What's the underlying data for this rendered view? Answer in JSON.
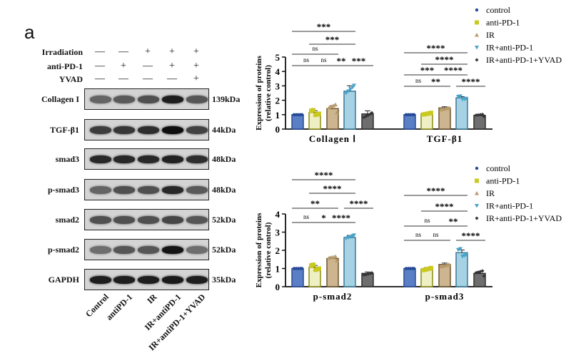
{
  "panel_letter": "a",
  "conditions": [
    {
      "label": "Irradiation",
      "signs": [
        "—",
        "—",
        "+",
        "+",
        "+"
      ]
    },
    {
      "label": "anti-PD-1",
      "signs": [
        "—",
        "+",
        "—",
        "+",
        "+"
      ]
    },
    {
      "label": "YVAD",
      "signs": [
        "—",
        "—",
        "—",
        "—",
        "+"
      ]
    }
  ],
  "blots": [
    {
      "label": "Collagen I",
      "kda": "139kDa",
      "intensity": [
        0.55,
        0.6,
        0.65,
        0.9,
        0.62
      ]
    },
    {
      "label": "TGF-β1",
      "kda": "44kDa",
      "intensity": [
        0.75,
        0.78,
        0.82,
        0.98,
        0.72
      ]
    },
    {
      "label": "smad3",
      "kda": "48kDa",
      "intensity": [
        0.85,
        0.85,
        0.85,
        0.88,
        0.82
      ]
    },
    {
      "label": "p-smad3",
      "kda": "48kDa",
      "intensity": [
        0.55,
        0.65,
        0.65,
        0.85,
        0.6
      ]
    },
    {
      "label": "smad2",
      "kda": "52kDa",
      "intensity": [
        0.65,
        0.65,
        0.65,
        0.7,
        0.62
      ]
    },
    {
      "label": "p-smad2",
      "kda": "52kDa",
      "intensity": [
        0.5,
        0.62,
        0.62,
        0.95,
        0.5
      ]
    },
    {
      "label": "GAPDH",
      "kda": "35kDa",
      "intensity": [
        0.9,
        0.9,
        0.9,
        0.92,
        0.9
      ]
    }
  ],
  "lanes": [
    "Control",
    "antiPD-1",
    "IR",
    "IR+antiPD-1",
    "IR+antiPD-1+YVAD"
  ],
  "colors": {
    "control": {
      "fill": "#5b7fc4",
      "stroke": "#274a96"
    },
    "anti-PD-1": {
      "fill": "#efefc4",
      "stroke": "#8a8a14",
      "marker": "#c9c920"
    },
    "IR": {
      "fill": "#cdb58f",
      "stroke": "#6b5530",
      "marker": "#b89a6a"
    },
    "IR+anti-PD-1": {
      "fill": "#a6d2e4",
      "stroke": "#3a7896",
      "marker": "#4aa3c8"
    },
    "IR+anti-PD-1+YVAD": {
      "fill": "#6e6e6e",
      "stroke": "#2e2e2e",
      "marker": "#333"
    }
  },
  "chart_data": [
    {
      "type": "bar",
      "ylabel": "Expression of proteins (relative control)",
      "ylim": [
        0,
        5
      ],
      "yticks": [
        "0",
        "1",
        "2",
        "3",
        "4",
        "5"
      ],
      "legend_position": "top-right",
      "series_names": [
        "control",
        "anti-PD-1",
        "IR",
        "IR+anti-PD-1",
        "IR+anti-PD-1+YVAD"
      ],
      "groups": [
        {
          "category": "Collagen Ⅰ",
          "values": [
            1.0,
            1.15,
            1.42,
            2.63,
            1.05
          ],
          "errors": [
            0,
            0.12,
            0.2,
            0.38,
            0.22
          ],
          "significance": [
            {
              "pair": [
                0,
                1
              ],
              "label": "ns"
            },
            {
              "pair": [
                1,
                2
              ],
              "label": "ns"
            },
            {
              "pair": [
                2,
                3
              ],
              "label": "**"
            },
            {
              "pair": [
                3,
                4
              ],
              "label": "***"
            },
            {
              "pair": [
                0,
                2
              ],
              "label": "ns"
            },
            {
              "pair": [
                1,
                3
              ],
              "label": "***"
            },
            {
              "pair": [
                0,
                3
              ],
              "label": "***"
            }
          ]
        },
        {
          "category": "TGF-β1",
          "values": [
            1.0,
            1.07,
            1.47,
            2.17,
            0.95
          ],
          "errors": [
            0,
            0.08,
            0.08,
            0.08,
            0.05
          ],
          "significance": [
            {
              "pair": [
                0,
                1
              ],
              "label": "ns"
            },
            {
              "pair": [
                1,
                2
              ],
              "label": "**"
            },
            {
              "pair": [
                3,
                4
              ],
              "label": "****"
            },
            {
              "pair": [
                0,
                2
              ],
              "label": "***"
            },
            {
              "pair": [
                2,
                3
              ],
              "label": "****"
            },
            {
              "pair": [
                1,
                3
              ],
              "label": "****"
            },
            {
              "pair": [
                0,
                3
              ],
              "label": "****"
            }
          ]
        }
      ]
    },
    {
      "type": "bar",
      "ylabel": "Expression of proteins (relative control)",
      "ylim": [
        0,
        4
      ],
      "yticks": [
        "0",
        "1",
        "2",
        "3",
        "4"
      ],
      "legend_position": "top-right",
      "series_names": [
        "control",
        "anti-PD-1",
        "IR",
        "IR+anti-PD-1",
        "IR+anti-PD-1+YVAD"
      ],
      "groups": [
        {
          "category": "p-smad2",
          "values": [
            1.0,
            1.07,
            1.55,
            2.7,
            0.73
          ],
          "errors": [
            0,
            0.1,
            0.08,
            0.12,
            0.08
          ],
          "significance": [
            {
              "pair": [
                0,
                1
              ],
              "label": "ns"
            },
            {
              "pair": [
                1,
                2
              ],
              "label": "*"
            },
            {
              "pair": [
                2,
                3
              ],
              "label": "****"
            },
            {
              "pair": [
                0,
                2
              ],
              "label": "**"
            },
            {
              "pair": [
                3,
                4
              ],
              "label": "****"
            },
            {
              "pair": [
                1,
                3
              ],
              "label": "****"
            },
            {
              "pair": [
                0,
                3
              ],
              "label": "****"
            }
          ]
        },
        {
          "category": "p-smad3",
          "values": [
            1.0,
            0.97,
            1.22,
            1.87,
            0.73
          ],
          "errors": [
            0,
            0.08,
            0.08,
            0.15,
            0.1
          ],
          "significance": [
            {
              "pair": [
                0,
                1
              ],
              "label": "ns"
            },
            {
              "pair": [
                1,
                2
              ],
              "label": "ns"
            },
            {
              "pair": [
                3,
                4
              ],
              "label": "****"
            },
            {
              "pair": [
                0,
                2
              ],
              "label": "ns"
            },
            {
              "pair": [
                2,
                3
              ],
              "label": "**"
            },
            {
              "pair": [
                1,
                3
              ],
              "label": "****"
            },
            {
              "pair": [
                0,
                3
              ],
              "label": "****"
            }
          ]
        }
      ]
    }
  ]
}
